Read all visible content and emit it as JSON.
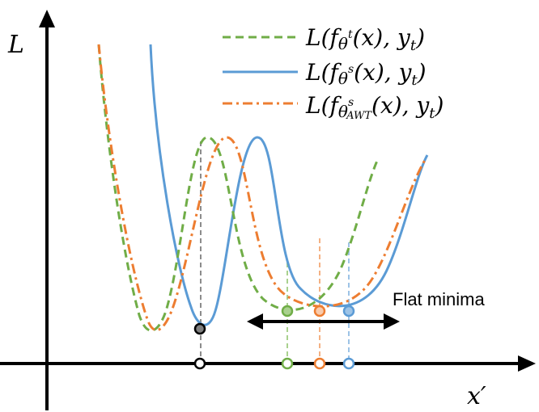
{
  "axes": {
    "y_label": "L",
    "x_label": "x′"
  },
  "legend": [
    {
      "id": "teacher",
      "text": "L(f",
      "sup": "θ",
      "supsup": "t",
      "rest": "(x), y",
      "sub": "t",
      "close": ")",
      "color": "#70ad47",
      "style": "dashed"
    },
    {
      "id": "student",
      "text": "L(f",
      "sup": "θ",
      "supsup": "s",
      "rest": "(x), y",
      "sub": "t",
      "close": ")",
      "color": "#5b9bd5",
      "style": "solid"
    },
    {
      "id": "awt",
      "text": "L(f",
      "sup": "θ",
      "supsup": "s",
      "supsub": "AWT",
      "rest": "(x), y",
      "sub": "t",
      "close": ")",
      "color": "#ed7d31",
      "style": "dashdot"
    }
  ],
  "annotation": {
    "flat_minima": "Flat minima"
  },
  "colors": {
    "axis": "#000000",
    "teacher": "#70ad47",
    "student": "#5b9bd5",
    "awt": "#ed7d31",
    "sharp_marker": "#7f7f7f"
  }
}
